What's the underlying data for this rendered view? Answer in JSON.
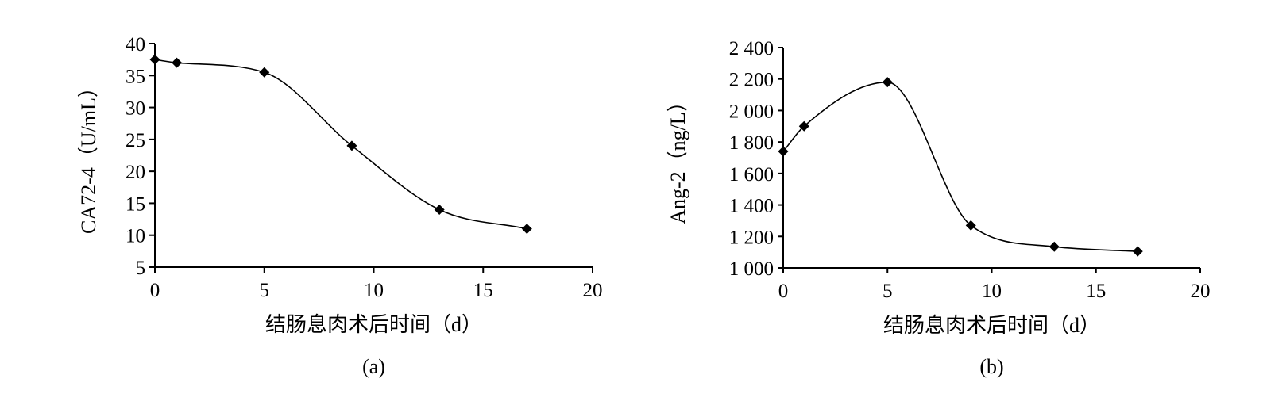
{
  "chart_data": [
    {
      "type": "line",
      "panel_label": "(a)",
      "xlabel": "结肠息肉术后时间（d）",
      "ylabel": "CA72-4（U/mL）",
      "xlim": [
        0,
        20
      ],
      "ylim": [
        5,
        40
      ],
      "x_ticks": [
        0,
        5,
        10,
        15,
        20
      ],
      "y_ticks": [
        5,
        10,
        15,
        20,
        25,
        30,
        35,
        40
      ],
      "x_tick_labels": [
        "0",
        "5",
        "10",
        "15",
        "20"
      ],
      "y_tick_labels": [
        "5",
        "10",
        "15",
        "20",
        "25",
        "30",
        "35",
        "40"
      ],
      "marker": "diamond",
      "smooth": true,
      "grid": false,
      "series": [
        {
          "x": [
            0,
            1,
            5,
            9,
            13,
            17
          ],
          "y": [
            37.5,
            37.0,
            35.5,
            24.0,
            14.0,
            11.0
          ]
        }
      ]
    },
    {
      "type": "line",
      "panel_label": "(b)",
      "xlabel": "结肠息肉术后时间（d）",
      "ylabel": "Ang-2（ng/L）",
      "xlim": [
        0,
        20
      ],
      "ylim": [
        1000,
        2400
      ],
      "x_ticks": [
        0,
        5,
        10,
        15,
        20
      ],
      "y_ticks": [
        1000,
        1200,
        1400,
        1600,
        1800,
        2000,
        2200,
        2400
      ],
      "x_tick_labels": [
        "0",
        "5",
        "10",
        "15",
        "20"
      ],
      "y_tick_labels": [
        "1 000",
        "1 200",
        "1 400",
        "1 600",
        "1 800",
        "2 000",
        "2 200",
        "2 400"
      ],
      "marker": "diamond",
      "smooth": true,
      "grid": false,
      "series": [
        {
          "x": [
            0,
            1,
            5,
            9,
            13,
            17
          ],
          "y": [
            1740,
            1900,
            2180,
            1270,
            1135,
            1105
          ]
        }
      ]
    }
  ]
}
